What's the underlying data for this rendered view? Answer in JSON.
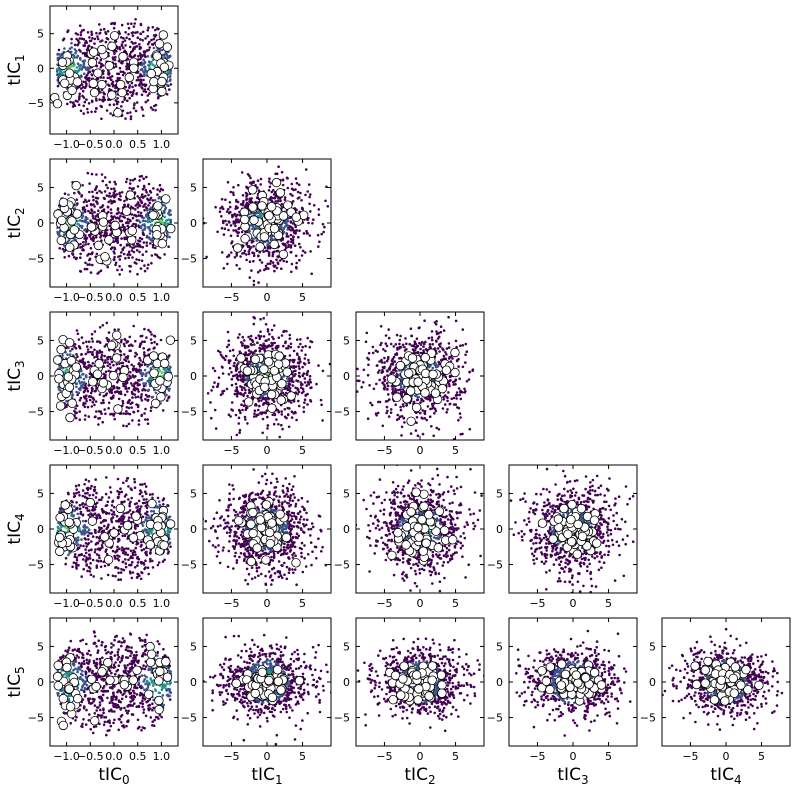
{
  "chart_data": {
    "type": "scatter",
    "description_kind": "corner pair-plot of tICA components",
    "variables": [
      "tIC0",
      "tIC1",
      "tIC2",
      "tIC3",
      "tIC4",
      "tIC5"
    ],
    "axis_labels": {
      "x": [
        {
          "base": "tIC",
          "sub": "0"
        },
        {
          "base": "tIC",
          "sub": "1"
        },
        {
          "base": "tIC",
          "sub": "2"
        },
        {
          "base": "tIC",
          "sub": "3"
        },
        {
          "base": "tIC",
          "sub": "4"
        }
      ],
      "y": [
        {
          "base": "tIC",
          "sub": "1"
        },
        {
          "base": "tIC",
          "sub": "2"
        },
        {
          "base": "tIC",
          "sub": "3"
        },
        {
          "base": "tIC",
          "sub": "4"
        },
        {
          "base": "tIC",
          "sub": "5"
        }
      ]
    },
    "x_axes": [
      {
        "var": "tIC0",
        "xlim": [
          -1.35,
          1.35
        ],
        "ticks": [
          -1.0,
          -0.5,
          0.0,
          0.5,
          1.0
        ],
        "tick_labels": [
          "−1.0",
          "−0.5",
          "0.0",
          "0.5",
          "1.0"
        ]
      },
      {
        "var": "tIC1",
        "xlim": [
          -9,
          9
        ],
        "ticks": [
          -5,
          0,
          5
        ],
        "tick_labels": [
          "−5",
          "0",
          "5"
        ]
      },
      {
        "var": "tIC2",
        "xlim": [
          -9,
          9
        ],
        "ticks": [
          -5,
          0,
          5
        ],
        "tick_labels": [
          "−5",
          "0",
          "5"
        ]
      },
      {
        "var": "tIC3",
        "xlim": [
          -9,
          9
        ],
        "ticks": [
          -5,
          0,
          5
        ],
        "tick_labels": [
          "−5",
          "0",
          "5"
        ]
      },
      {
        "var": "tIC4",
        "xlim": [
          -9,
          9
        ],
        "ticks": [
          -5,
          0,
          5
        ],
        "tick_labels": [
          "−5",
          "0",
          "5"
        ]
      }
    ],
    "y_axes": [
      {
        "var": "tIC1",
        "ylim": [
          -9.5,
          9
        ],
        "ticks": [
          -5,
          0,
          5
        ],
        "tick_labels": [
          "−5",
          "0",
          "5"
        ]
      },
      {
        "var": "tIC2",
        "ylim": [
          -9,
          9
        ],
        "ticks": [
          -5,
          0,
          5
        ],
        "tick_labels": [
          "−5",
          "0",
          "5"
        ]
      },
      {
        "var": "tIC3",
        "ylim": [
          -9,
          9
        ],
        "ticks": [
          -5,
          0,
          5
        ],
        "tick_labels": [
          "−5",
          "0",
          "5"
        ]
      },
      {
        "var": "tIC4",
        "ylim": [
          -9,
          9
        ],
        "ticks": [
          -5,
          0,
          5
        ],
        "tick_labels": [
          "−5",
          "0",
          "5"
        ]
      },
      {
        "var": "tIC5",
        "ylim": [
          -9,
          9
        ],
        "ticks": [
          -5,
          0,
          5
        ],
        "tick_labels": [
          "−5",
          "0",
          "5"
        ]
      }
    ],
    "layers": [
      {
        "name": "",
        "kind": "density-colored scatter",
        "colormap": [
          "#440154",
          "#3b528b",
          "#21918c",
          "#5ec962"
        ],
        "points_per_panel_approx": 2000
      },
      {
        "name": "",
        "kind": "cluster centers",
        "marker_fill": "#ffffff",
        "marker_edge": "#000000",
        "centers_per_panel_approx": 100
      }
    ],
    "grid": false,
    "legend": "none",
    "panel_layout": "lower-triangle 5x5"
  }
}
